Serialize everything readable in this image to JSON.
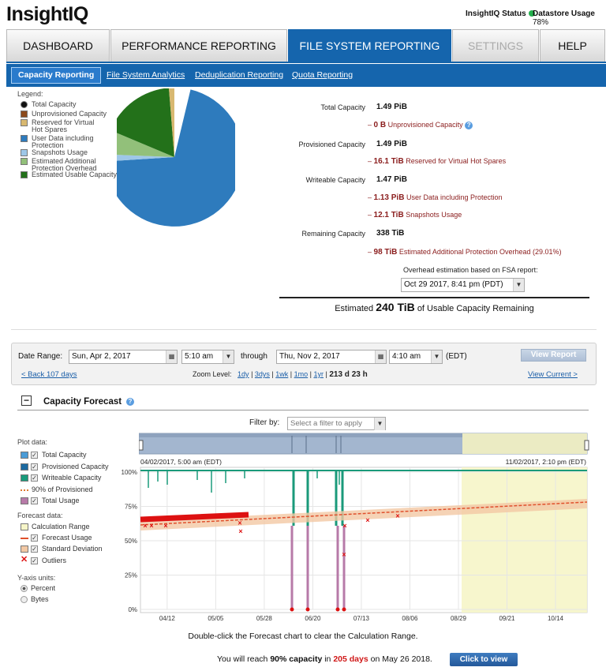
{
  "header": {
    "logo_text": "InsightIQ",
    "status_label": "InsightIQ Status",
    "datastore_label": "Datastore Usage",
    "datastore_value": "78%"
  },
  "nav": {
    "tabs": [
      "DASHBOARD",
      "PERFORMANCE REPORTING",
      "FILE SYSTEM REPORTING",
      "SETTINGS",
      "HELP"
    ],
    "active": "FILE SYSTEM REPORTING"
  },
  "subnav": {
    "tabs": [
      "Capacity Reporting",
      "File System Analytics",
      "Deduplication Reporting",
      "Quota Reporting"
    ],
    "active": "Capacity Reporting"
  },
  "pie": {
    "legend_title": "Legend:",
    "items": [
      {
        "label": "Total Capacity",
        "color": "#111111"
      },
      {
        "label": "Unprovisioned Capacity",
        "color": "#8b4a1c"
      },
      {
        "label": "Reserved for Virtual Hot Spares",
        "color": "#d8b870"
      },
      {
        "label": "User Data including Protection",
        "color": "#2e7bbd"
      },
      {
        "label": "Snapshots Usage",
        "color": "#9ec7e8"
      },
      {
        "label": "Estimated Additional Protection Overhead",
        "color": "#92c07a"
      },
      {
        "label": "Estimated Usable Capacity",
        "color": "#23711a"
      }
    ]
  },
  "capacity": {
    "total_label": "Total Capacity",
    "total_value": "1.49 PiB",
    "unprov_value": "0 B",
    "unprov_label": "Unprovisioned Capacity",
    "provisioned_label": "Provisioned Capacity",
    "provisioned_value": "1.49 PiB",
    "reserved_value": "16.1 TiB",
    "reserved_label": "Reserved for Virtual Hot Spares",
    "writeable_label": "Writeable Capacity",
    "writeable_value": "1.47 PiB",
    "userdata_value": "1.13 PiB",
    "userdata_label": "User Data including Protection",
    "snap_value": "12.1 TiB",
    "snap_label": "Snapshots Usage",
    "remaining_label": "Remaining Capacity",
    "remaining_value": "338 TiB",
    "overhead_value": "98 TiB",
    "overhead_label": "Estimated Additional Protection Overhead (29.01%)",
    "fsa_note": "Overhead estimation based on FSA report:",
    "fsa_report": "Oct 29 2017, 8:41 pm (PDT)",
    "estimated_prefix": "Estimated",
    "estimated_value": "240 TiB",
    "estimated_suffix": "of Usable Capacity Remaining"
  },
  "daterange": {
    "label": "Date Range:",
    "start_date": "Sun, Apr 2, 2017",
    "start_time": "5:10 am",
    "through": "through",
    "end_date": "Thu, Nov 2, 2017",
    "end_time": "4:10 am",
    "tz": "(EDT)",
    "view_report": "View Report",
    "back_link": "< Back 107 days",
    "zoom_label": "Zoom Level:",
    "zoom_options": [
      "1dy",
      "3dys",
      "1wk",
      "1mo",
      "1yr"
    ],
    "zoom_current": "213 d 23 h",
    "view_current": "View Current >"
  },
  "forecast": {
    "title": "Capacity Forecast",
    "filter_label": "Filter by:",
    "filter_placeholder": "Select a filter to apply",
    "plot_data_label": "Plot data:",
    "plot_items": [
      {
        "label": "Total Capacity",
        "color": "#4a9bd6"
      },
      {
        "label": "Provisioned Capacity",
        "color": "#1c6aa0"
      },
      {
        "label": "Writeable Capacity",
        "color": "#1a9a7a"
      },
      {
        "label": "90% of Provisioned",
        "color": "#e07a30"
      },
      {
        "label": "Total Usage",
        "color": "#b77aa8"
      }
    ],
    "forecast_data_label": "Forecast data:",
    "forecast_items": [
      {
        "label": "Calculation Range",
        "color": "#f6f5c8"
      },
      {
        "label": "Forecast Usage",
        "color": "#e0502c"
      },
      {
        "label": "Standard Deviation",
        "color": "#f2c8a4"
      },
      {
        "label": "Outliers",
        "color": "#dd1111"
      }
    ],
    "yunits_label": "Y-axis units:",
    "yunits": [
      "Percent",
      "Bytes"
    ],
    "nav_start": "04/02/2017, 5:00 am (EDT)",
    "nav_end": "11/02/2017, 2:10 pm (EDT)",
    "hint": "Double-click the Forecast chart to clear the Calculation Range.",
    "reach_prefix": "You will reach",
    "reach_pct": "90% capacity",
    "reach_in": "in",
    "reach_days": "205 days",
    "reach_on": "on May 26 2018.",
    "click_btn": "Click to view"
  },
  "chart_data": {
    "type": "line",
    "title": "Capacity Forecast",
    "ylabel": "Percent",
    "ylim": [
      0,
      100
    ],
    "yticks": [
      "100%",
      "75%",
      "50%",
      "25%",
      "0%"
    ],
    "x_ticks": [
      "04/12",
      "05/05",
      "05/28",
      "06/20",
      "07/13",
      "08/06",
      "08/29",
      "09/21",
      "10/14"
    ],
    "series": [
      {
        "name": "Writeable Capacity",
        "values": [
          99,
          99,
          99,
          99,
          99,
          99,
          99,
          99,
          99
        ]
      },
      {
        "name": "Forecast Usage",
        "x": [
          "04/02",
          "10/20"
        ],
        "values": [
          63,
          75
        ]
      },
      {
        "name": "Total Usage",
        "x": [
          "04/02",
          "05/15"
        ],
        "values": [
          64,
          68
        ]
      },
      {
        "name": "Outliers",
        "values": [
          61,
          61,
          61,
          63,
          57,
          61,
          40,
          65,
          68
        ]
      }
    ]
  }
}
